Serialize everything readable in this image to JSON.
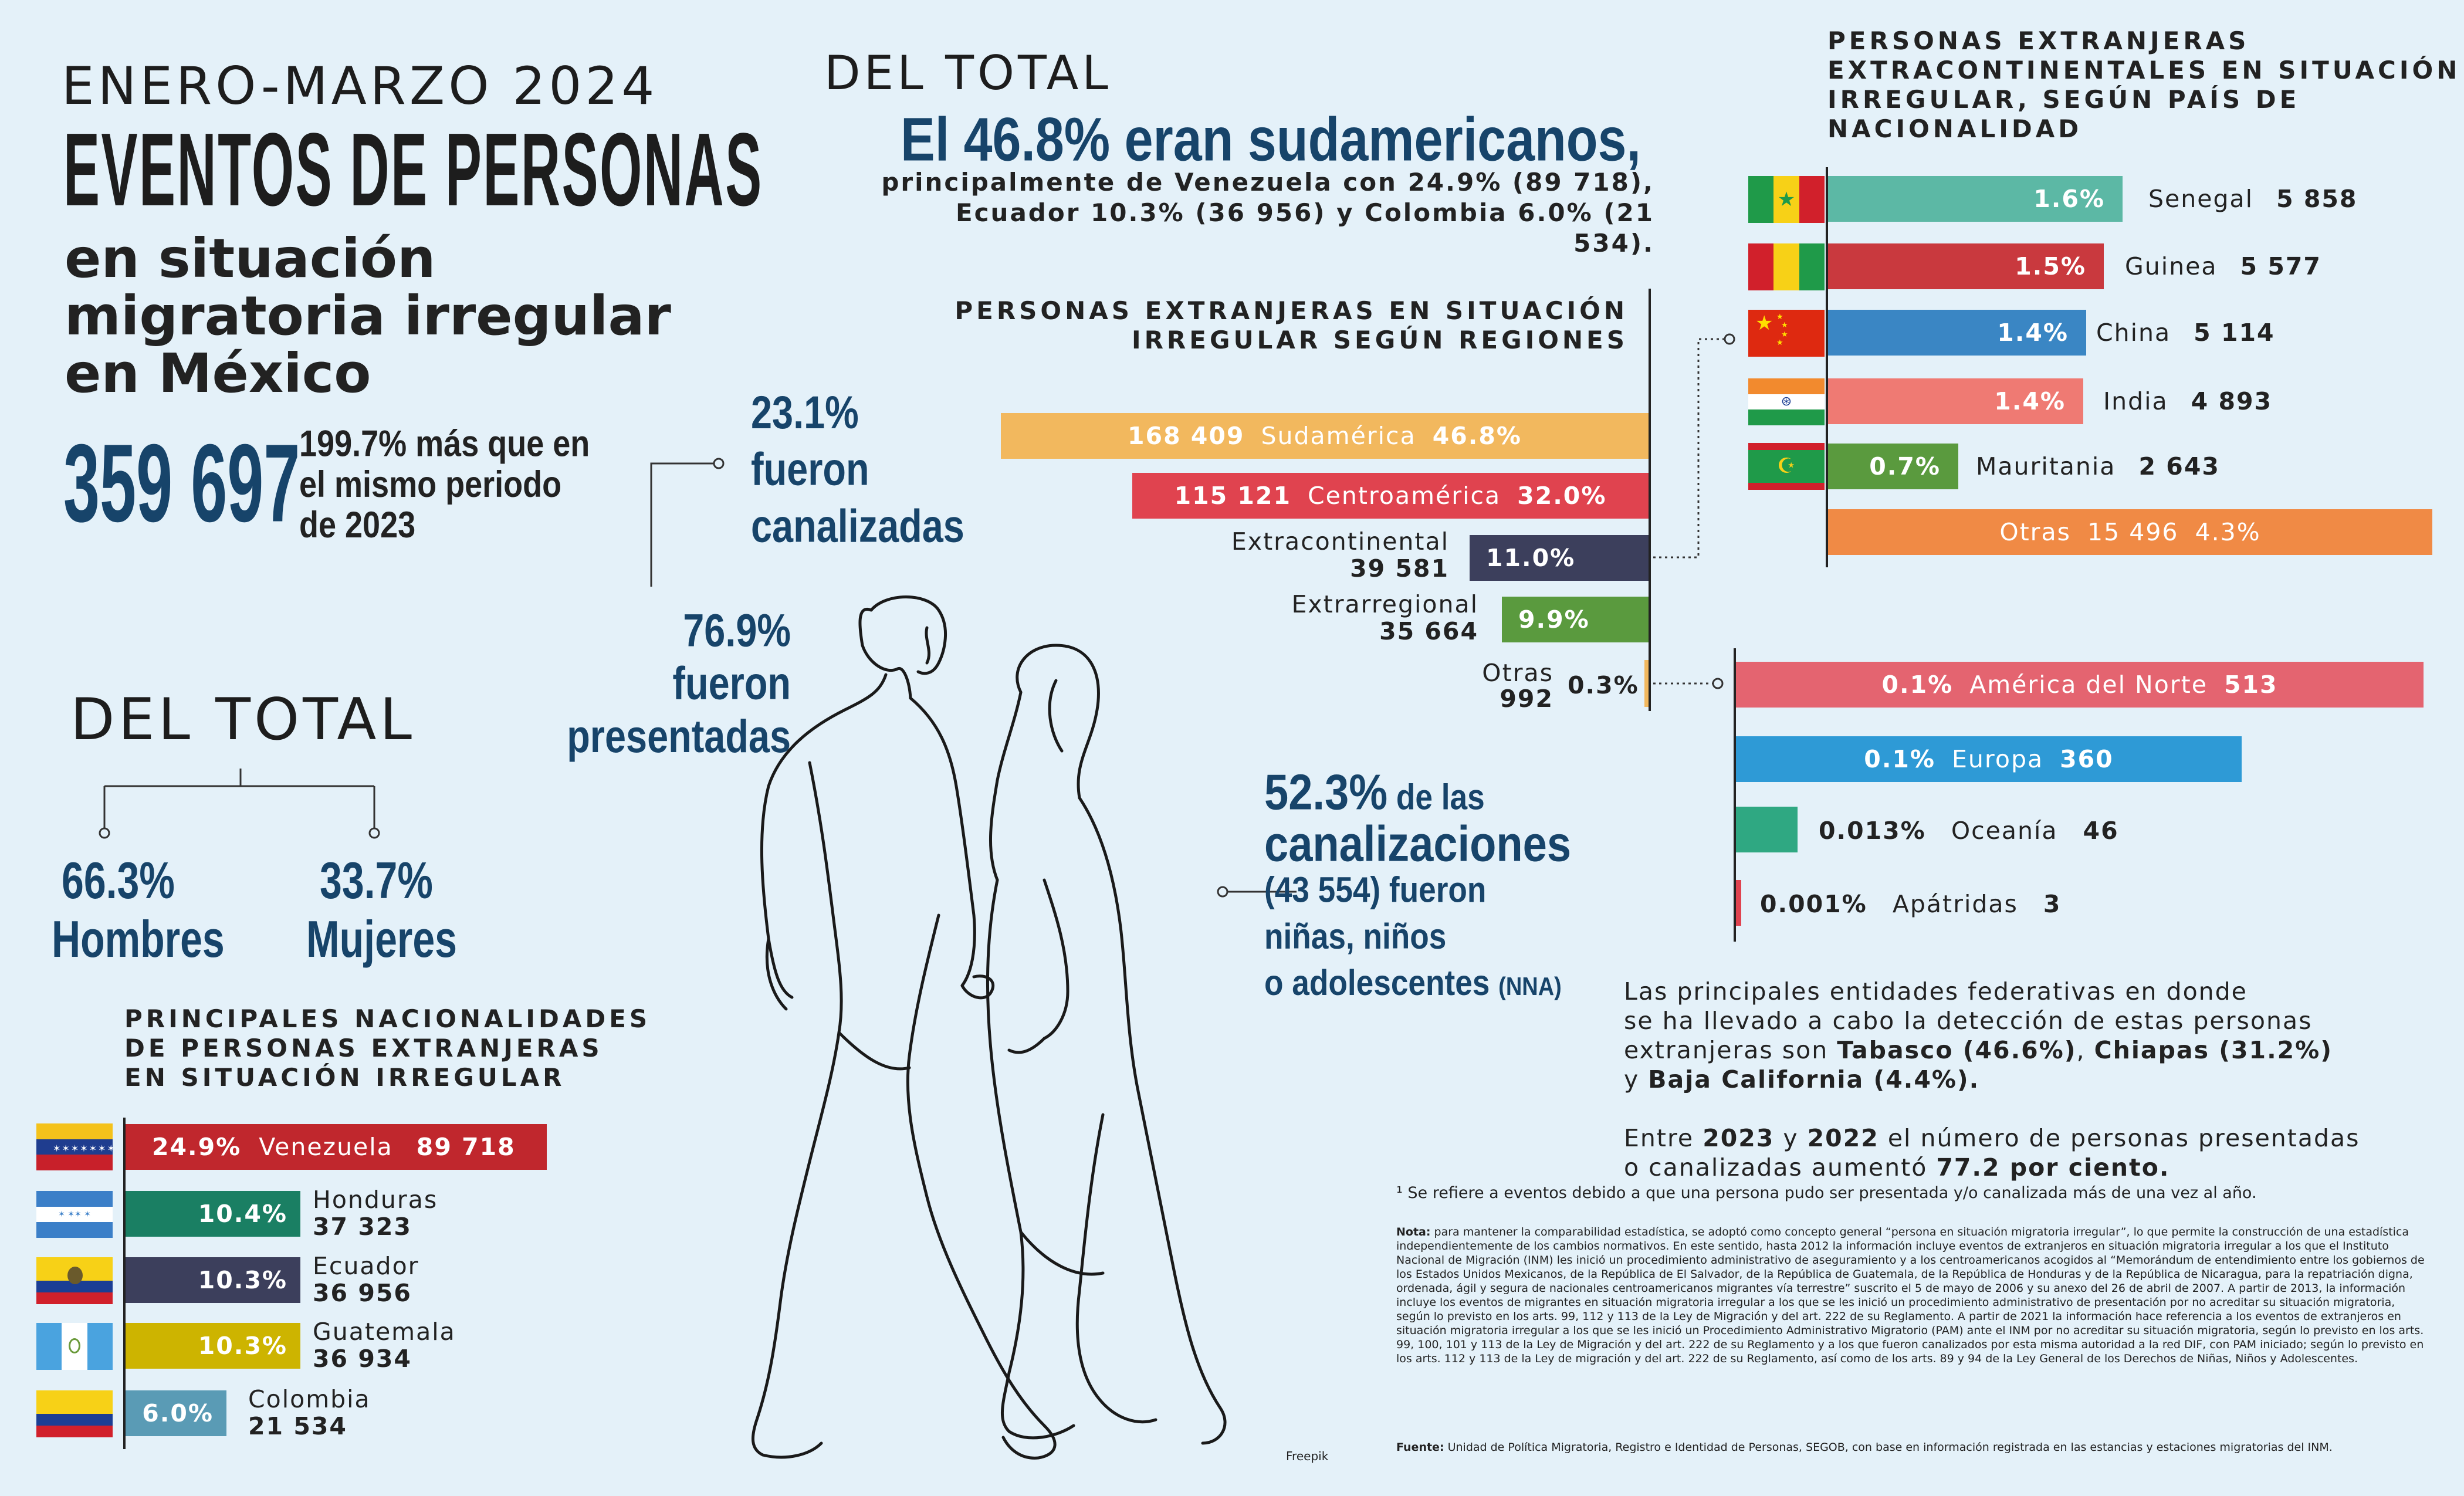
{
  "header": {
    "period": "ENERO-MARZO 2024",
    "title_main": "EVENTOS DE PERSONAS",
    "title_sub_1": "en situación",
    "title_sub_2": "migratoria irregular",
    "title_sub_3": "en México",
    "total": "359 697",
    "growth_1": "199.7% más que en",
    "growth_2": "el mismo periodo",
    "growth_3": "de 2023"
  },
  "gender": {
    "title": "DEL TOTAL",
    "men_pct": "66.3%",
    "men_label": "Hombres",
    "women_pct": "33.7%",
    "women_label": "Mujeres"
  },
  "nationalities": {
    "heading_1": "PRINCIPALES NACIONALIDADES",
    "heading_2": "DE PERSONAS EXTRANJERAS",
    "heading_3": "EN SITUACIÓN IRREGULAR",
    "items": [
      {
        "pct": "24.9%",
        "name": "Venezuela",
        "value": "89 718",
        "color": "#c0272d",
        "flag": "venezuela-flag"
      },
      {
        "pct": "10.4%",
        "name": "Honduras",
        "value": "37 323",
        "color": "#1a7f63",
        "flag": "honduras-flag"
      },
      {
        "pct": "10.3%",
        "name": "Ecuador",
        "value": "36 956",
        "color": "#3c3f5c",
        "flag": "ecuador-flag"
      },
      {
        "pct": "10.3%",
        "name": "Guatemala",
        "value": "36 934",
        "color": "#cdb400",
        "flag": "guatemala-flag"
      },
      {
        "pct": "6.0%",
        "name": "Colombia",
        "value": "21 534",
        "color": "#5a9bb5",
        "flag": "colombia-flag"
      }
    ]
  },
  "channel": {
    "canalizadas_pct": "23.1%",
    "canalizadas_1": "fueron",
    "canalizadas_2": "canalizadas",
    "presentadas_pct": "76.9%",
    "presentadas_1": "fueron",
    "presentadas_2": "presentadas"
  },
  "nna": {
    "pct": "52.3%",
    "line1_rest": "de las",
    "line2": "canalizaciones",
    "line3": "(43 554) fueron",
    "line4": "niñas, niños",
    "line5": "o adolescentes",
    "line5_abbr": "(NNA)"
  },
  "summary": {
    "title": "DEL TOTAL",
    "headline": "El 46.8% eran sudamericanos,",
    "detail_1": "principalmente de Venezuela con 24.9% (89 718),",
    "detail_2": "Ecuador 10.3% (36 956) y Colombia 6.0% (21 534)."
  },
  "regions": {
    "heading_1": "PERSONAS EXTRANJERAS EN SITUACIÓN",
    "heading_2": "IRREGULAR SEGÚN REGIONES",
    "items": [
      {
        "value": "168 409",
        "name": "Sudamérica",
        "pct": "46.8%",
        "color": "#f2b85e"
      },
      {
        "value": "115 121",
        "name": "Centroamérica",
        "pct": "32.0%",
        "color": "#e0434f"
      },
      {
        "value": "39 581",
        "name": "Extracontinental",
        "pct": "11.0%",
        "color": "#3c3f5c"
      },
      {
        "value": "35 664",
        "name": "Extrarregional",
        "pct": "9.9%",
        "color": "#5a9a3e"
      },
      {
        "value": "992",
        "name": "Otras",
        "pct": "0.3%",
        "color": "#f2b85e"
      }
    ]
  },
  "extracontinental": {
    "heading_1": "PERSONAS EXTRANJERAS",
    "heading_2": "EXTRACONTINENTALES EN SITUACIÓN",
    "heading_3": "IRREGULAR, SEGÚN PAÍS DE",
    "heading_4": "NACIONALIDAD",
    "items": [
      {
        "pct": "1.6%",
        "name": "Senegal",
        "value": "5 858",
        "color": "#5cb8a5",
        "flag": "senegal-flag"
      },
      {
        "pct": "1.5%",
        "name": "Guinea",
        "value": "5 577",
        "color": "#c9393e",
        "flag": "guinea-flag"
      },
      {
        "pct": "1.4%",
        "name": "China",
        "value": "5 114",
        "color": "#3a86c4",
        "flag": "china-flag"
      },
      {
        "pct": "1.4%",
        "name": "India",
        "value": "4 893",
        "color": "#ef7a73",
        "flag": "india-flag"
      },
      {
        "pct": "0.7%",
        "name": "Mauritania",
        "value": "2 643",
        "color": "#5a9a3e",
        "flag": "mauritania-flag"
      },
      {
        "pct": "4.3%",
        "name": "Otras",
        "value": "15 496",
        "color": "#f08a45",
        "flag": ""
      }
    ]
  },
  "others": {
    "items": [
      {
        "pct": "0.1%",
        "name": "América del Norte",
        "value": "513",
        "color": "#e46470"
      },
      {
        "pct": "0.1%",
        "name": "Europa",
        "value": "360",
        "color": "#2e9ad6"
      },
      {
        "pct": "0.013%",
        "name": "Oceanía",
        "value": "46",
        "color": "#2fa882"
      },
      {
        "pct": "0.001%",
        "name": "Apátridas",
        "value": "3",
        "color": "#e0434f"
      }
    ]
  },
  "entities": {
    "line1": "Las principales entidades federativas en donde",
    "line2": "se ha llevado a cabo la detección de estas personas",
    "line3_pre": "extranjeras son ",
    "tabasco": "Tabasco (46.6%)",
    "sep1": ", ",
    "chiapas": "Chiapas (31.2%)",
    "line4_pre": "y ",
    "baja": "Baja California (4.4%)",
    "line4_post": ".",
    "growth_pre": "Entre ",
    "y2023": "2023",
    "growth_mid": " y ",
    "y2022": "2022",
    "growth_post": " el número de personas presentadas",
    "growth_line2_pre": "o canalizadas aumentó ",
    "growth_value": "77.2 por ciento",
    "growth_line2_post": "."
  },
  "notes": {
    "footnote": "¹ Se refiere a eventos debido a que una persona pudo ser presentada y/o canalizada más de una vez al año.",
    "nota_label": "Nota:",
    "nota_text": "para mantener la comparabilidad estadística, se adoptó como concepto general “persona en situación migratoria irregular”, lo que permite la construcción de una estadística independientemente de los cambios normativos. En este sentido, hasta 2012 la información incluye eventos de extranjeros en situación migratoria irregular a los que el Instituto Nacional de Migración (INM) les inició un procedimiento administrativo de aseguramiento y a los centroamericanos acogidos al “Memorándum de entendimiento entre los gobiernos de los Estados Unidos Mexicanos, de la República de El Salvador, de la República de Guatemala, de la República de Honduras y de la República de Nicaragua, para la repatriación digna, ordenada, ágil y segura de nacionales centroamericanos migrantes vía terrestre” suscrito el 5 de mayo de 2006 y su anexo del 26 de abril de 2007. A partir de 2013, la información incluye los eventos de migrantes en situación migratoria irregular a los que se les inició un procedimiento administrativo de presentación por no acreditar su situación migratoria, según lo previsto en los arts. 99, 112 y 113 de la Ley de Migración y del art. 222 de su Reglamento. A partir de 2021 la información hace referencia a los eventos de extranjeros en situación migratoria irregular a los que se les inició un Procedimiento Administrativo Migratorio (PAM) ante el INM por no acreditar su situación migratoria, según lo previsto en los arts. 99, 100, 101 y 113 de la Ley de Migración y del art. 222 de su Reglamento y a los que fueron canalizados por esta misma autoridad a la red DIF, con PAM iniciado; según lo previsto en los arts. 112 y 113 de la Ley de migración y del art. 222 de su Reglamento, así como de los arts. 89 y 94 de la Ley General de los Derechos de Niñas, Niños y Adolescentes.",
    "fuente_label": "Fuente:",
    "fuente_text": "Unidad de Política Migratoria, Registro e Identidad de Personas, SEGOB, con base en información registrada en las estancias y estaciones migratorias del INM.",
    "credit": "Freepik"
  }
}
